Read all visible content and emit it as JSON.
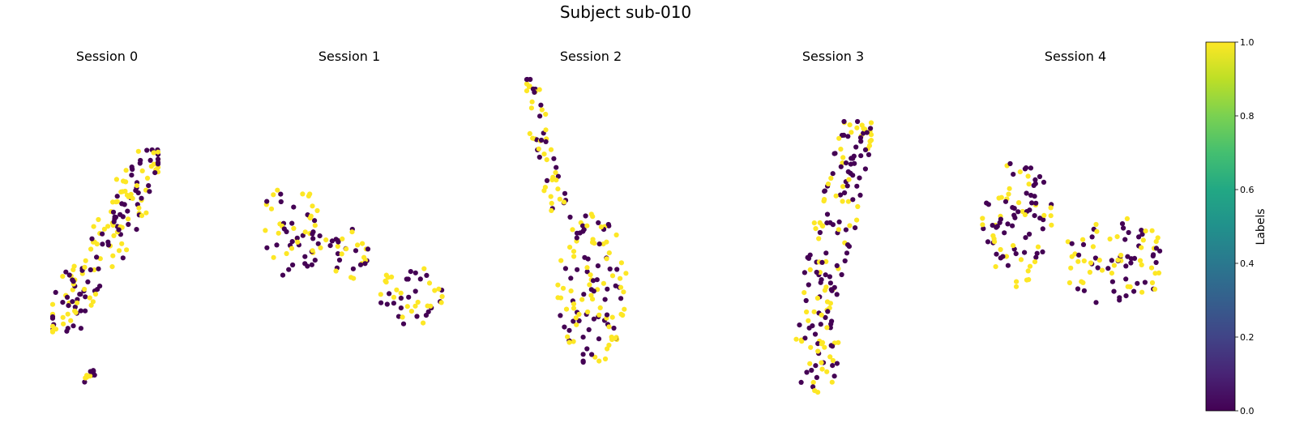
{
  "figure": {
    "title": "Subject sub-010"
  },
  "chart_data": {
    "type": "scatter",
    "title": "Subject sub-010",
    "axes_visible": false,
    "colormap": "viridis",
    "colors": {
      "label_0": "#440154",
      "label_1": "#fde725"
    },
    "colorbar": {
      "label": "Labels",
      "range": [
        0.0,
        1.0
      ],
      "ticks": [
        "0.0",
        "0.2",
        "0.4",
        "0.6",
        "0.8",
        "1.0"
      ]
    },
    "panels": [
      {
        "title": "Session 0",
        "clusters": [
          {
            "n": 170,
            "x": [
              65,
              195
            ],
            "y": [
              185,
              415
            ],
            "shape": "diag_up"
          },
          {
            "n": 10,
            "x": [
              103,
              118
            ],
            "y": [
              452,
              478
            ],
            "shape": "blob"
          }
        ]
      },
      {
        "title": "Session 1",
        "clusters": [
          {
            "n": 60,
            "x": [
              320,
              405
            ],
            "y": [
              222,
              345
            ],
            "shape": "blob"
          },
          {
            "n": 30,
            "x": [
              405,
              455
            ],
            "y": [
              282,
              345
            ],
            "shape": "blob"
          },
          {
            "n": 45,
            "x": [
              465,
              547
            ],
            "y": [
              326,
              405
            ],
            "shape": "blob"
          }
        ]
      },
      {
        "title": "Session 2",
        "clusters": [
          {
            "n": 55,
            "x": [
              650,
              710
            ],
            "y": [
              98,
              268
            ],
            "shape": "diag_down"
          },
          {
            "n": 125,
            "x": [
              688,
              775
            ],
            "y": [
              262,
              452
            ],
            "shape": "blob"
          }
        ]
      },
      {
        "title": "Session 3",
        "clusters": [
          {
            "n": 130,
            "x": [
              985,
              1075
            ],
            "y": [
              150,
              385
            ],
            "shape": "diag_down_rev"
          },
          {
            "n": 50,
            "x": [
              980,
              1035
            ],
            "y": [
              380,
              488
            ],
            "shape": "blob"
          }
        ]
      },
      {
        "title": "Session 4",
        "clusters": [
          {
            "n": 90,
            "x": [
              1212,
              1300
            ],
            "y": [
              198,
              355
            ],
            "shape": "blob"
          },
          {
            "n": 85,
            "x": [
              1310,
              1440
            ],
            "y": [
              268,
              378
            ],
            "shape": "blob"
          }
        ]
      }
    ]
  }
}
